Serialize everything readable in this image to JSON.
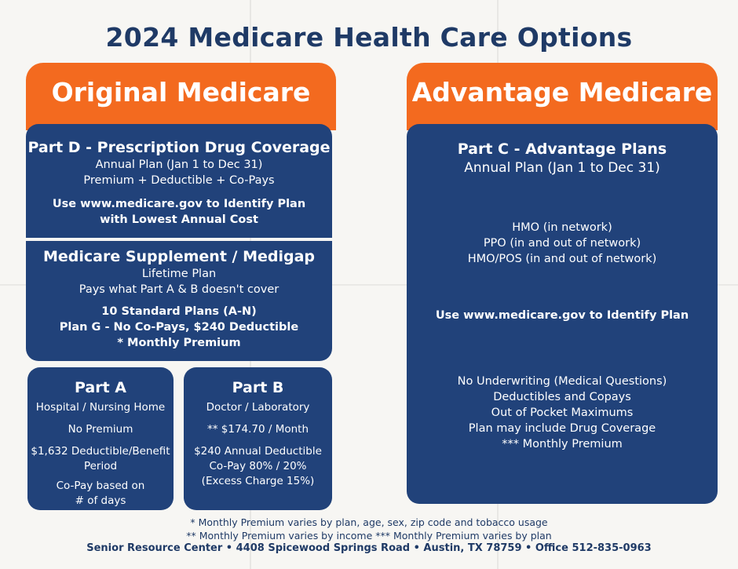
{
  "title": "2024 Medicare Health Care Options",
  "original": {
    "banner": "Original Medicare",
    "part_d": {
      "heading": "Part D - Prescription Drug Coverage",
      "lines": [
        "Annual Plan (Jan 1 to Dec 31)",
        "Premium + Deductible + Co-Pays"
      ],
      "bold_lines": [
        "Use www.medicare.gov to Identify Plan",
        "with Lowest Annual Cost"
      ]
    },
    "medigap": {
      "heading": "Medicare Supplement / Medigap",
      "lines": [
        "Lifetime Plan",
        "Pays what Part A & B doesn't cover"
      ],
      "bold_lines": [
        "10 Standard Plans (A-N)",
        "Plan G - No Co-Pays, $240 Deductible",
        "* Monthly Premium"
      ]
    },
    "part_a": {
      "heading": "Part A",
      "line1": "Hospital / Nursing Home",
      "line2": "No Premium",
      "line3a": "$1,632 Deductible/Benefit",
      "line3b": "Period",
      "line4a": "Co-Pay based on",
      "line4b": "# of days"
    },
    "part_b": {
      "heading": "Part B",
      "line1": "Doctor / Laboratory",
      "line2": "** $174.70 / Month",
      "line3a": "$240 Annual Deductible",
      "line3b": "Co-Pay 80% / 20%",
      "line3c": "(Excess Charge 15%)"
    }
  },
  "advantage": {
    "banner": "Advantage Medicare",
    "part_c": {
      "heading": "Part C - Advantage Plans",
      "subheading": "Annual Plan (Jan 1 to Dec 31)",
      "plans": [
        "HMO (in network)",
        "PPO (in and out of network)",
        "HMO/POS (in and out of network)"
      ],
      "identify": "Use www.medicare.gov to Identify Plan",
      "features": [
        "No Underwriting (Medical Questions)",
        "Deductibles and Copays",
        "Out of Pocket Maximums",
        "Plan may include Drug Coverage",
        "*** Monthly Premium"
      ]
    }
  },
  "footer": {
    "note1": "* Monthly Premium varies by plan, age, sex, zip code and tobacco usage",
    "note2": "** Monthly Premium varies by income *** Monthly Premium varies by plan",
    "contact": "Senior Resource Center • 4408 Spicewood Springs Road • Austin, TX 78759 • Office 512-835-0963"
  }
}
